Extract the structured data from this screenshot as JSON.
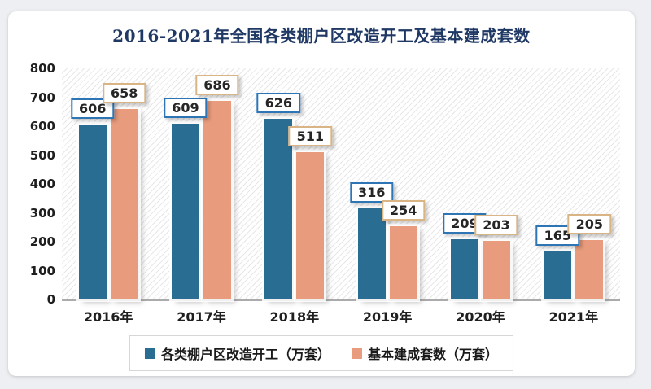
{
  "title": "2016-2021年全国各类棚户区改造开工及基本建成套数",
  "colors": {
    "title": "#1f3864",
    "series1_bar": "#2a6d93",
    "series2_bar": "#e99c7d",
    "series1_label_border": "#2e75b6",
    "series2_label_border": "#d9b586",
    "axis_line": "#ababab",
    "card_bg": "#ffffff",
    "page_bg": "#edeff2"
  },
  "chart_data": {
    "type": "bar",
    "title": "2016-2021年全国各类棚户区改造开工及基本建成套数",
    "categories": [
      "2016年",
      "2017年",
      "2018年",
      "2019年",
      "2020年",
      "2021年"
    ],
    "series": [
      {
        "name": "各类棚户区改造开工（万套）",
        "color": "#2a6d93",
        "label_border": "#2e75b6",
        "values": [
          606,
          609,
          626,
          316,
          209,
          165
        ]
      },
      {
        "name": "基本建成套数（万套）",
        "color": "#e99c7d",
        "label_border": "#d9b586",
        "values": [
          658,
          686,
          511,
          254,
          203,
          205
        ]
      }
    ],
    "xlabel": "",
    "ylabel": "",
    "ylim": [
      0,
      800
    ],
    "yticks": [
      0,
      100,
      200,
      300,
      400,
      500,
      600,
      700,
      800
    ],
    "grid": false,
    "plot_background": "diagonal-hatch",
    "legend_position": "bottom",
    "data_labels": true
  }
}
